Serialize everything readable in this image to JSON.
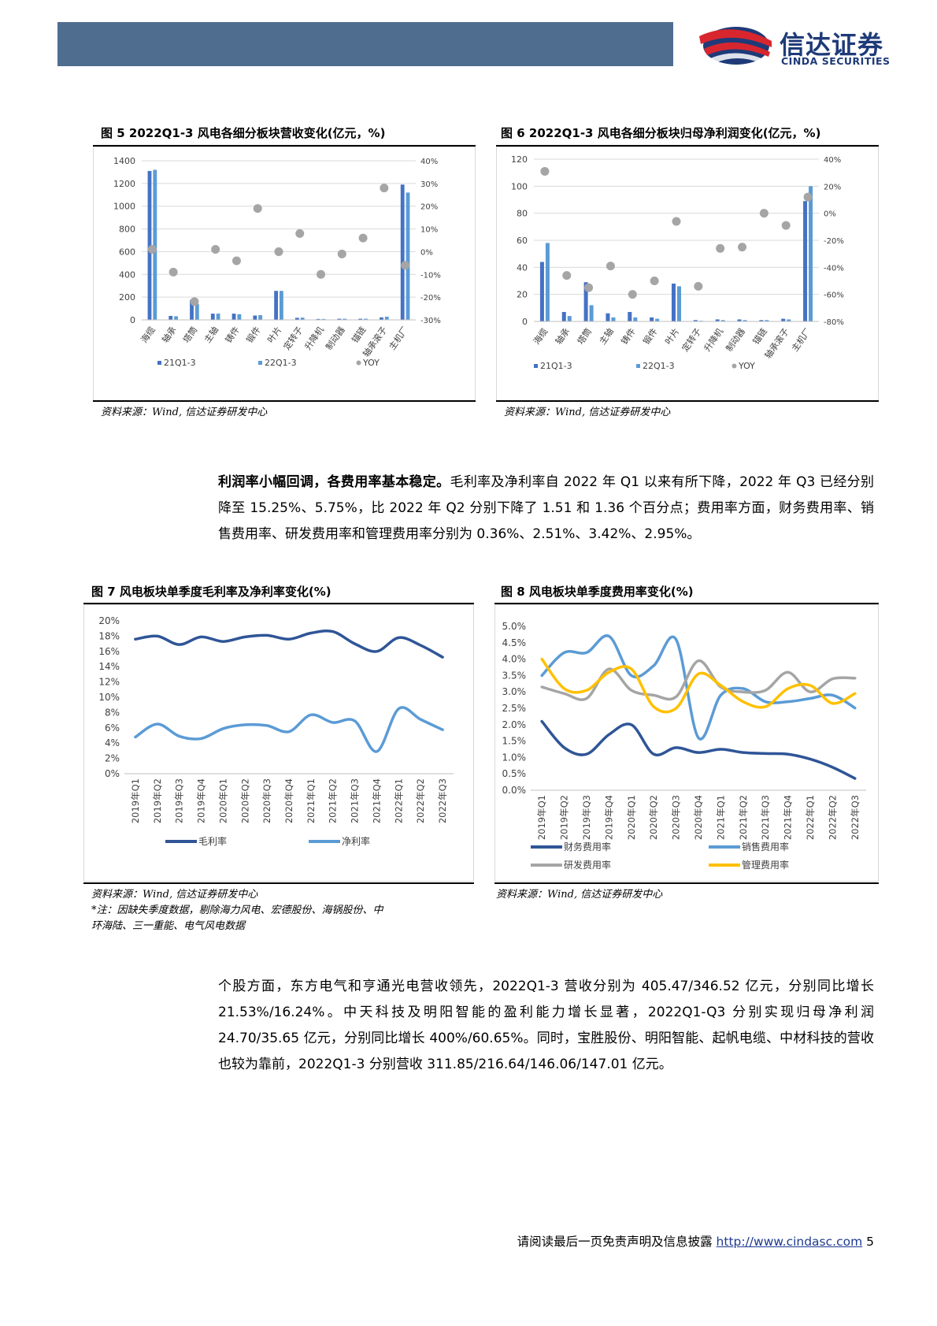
{
  "header": {
    "logo_cn": "信达证券",
    "logo_en": "CINDA SECURITIES"
  },
  "fig5": {
    "title": "图 5 2022Q1-3 风电各细分板块营收变化(亿元，%)",
    "source": "资料来源：Wind, 信达证券研发中心",
    "chart_data": {
      "type": "bar",
      "categories": [
        "海缆",
        "轴承",
        "塔筒",
        "主轴",
        "铸件",
        "锻件",
        "叶片",
        "定转子",
        "升降机",
        "制动器",
        "锚链",
        "轴承滚子",
        "主机厂"
      ],
      "series": [
        {
          "name": "21Q1-3",
          "values": [
            1310,
            35,
            175,
            55,
            55,
            38,
            255,
            18,
            8,
            10,
            10,
            22,
            1190
          ]
        },
        {
          "name": "22Q1-3",
          "values": [
            1320,
            32,
            140,
            55,
            50,
            42,
            255,
            20,
            8,
            10,
            10,
            28,
            1120
          ]
        },
        {
          "name": "YOY",
          "values": [
            1,
            -9,
            -22,
            1,
            -4,
            19,
            0,
            8,
            -10,
            -1,
            6,
            28,
            -6
          ]
        }
      ],
      "ylim_left": [
        0,
        1400
      ],
      "yticks_left": [
        "0",
        "200",
        "400",
        "600",
        "800",
        "1000",
        "1200",
        "1400"
      ],
      "ylim_right": [
        -30,
        40
      ],
      "yticks_right": [
        "-30%",
        "-20%",
        "-10%",
        "0%",
        "10%",
        "20%",
        "30%",
        "40%"
      ],
      "legend": [
        "21Q1-3",
        "22Q1-3",
        "YOY"
      ]
    }
  },
  "fig6": {
    "title": "图 6 2022Q1-3 风电各细分板块归母净利润变化(亿元，%)",
    "source": "资料来源：Wind, 信达证券研发中心",
    "chart_data": {
      "type": "bar",
      "categories": [
        "海缆",
        "轴承",
        "塔筒",
        "主轴",
        "铸件",
        "锻件",
        "叶片",
        "定转子",
        "升降机",
        "制动器",
        "锚链",
        "轴承滚子",
        "主机厂"
      ],
      "series": [
        {
          "name": "21Q1-3",
          "values": [
            44,
            7,
            29,
            6,
            7,
            3,
            28,
            1,
            1.5,
            1.5,
            1,
            2,
            89
          ]
        },
        {
          "name": "22Q1-3",
          "values": [
            58,
            4,
            12,
            3,
            3,
            2,
            26,
            0.5,
            1,
            1,
            1,
            1.5,
            100
          ]
        },
        {
          "name": "YOY",
          "values": [
            31,
            -46,
            -55,
            -39,
            -60,
            -50,
            -6,
            -54,
            -26,
            -25,
            0,
            -9,
            12
          ]
        }
      ],
      "ylim_left": [
        0,
        120
      ],
      "yticks_left": [
        "0",
        "20",
        "40",
        "60",
        "80",
        "100",
        "120"
      ],
      "ylim_right": [
        -80,
        40
      ],
      "yticks_right": [
        "-80%",
        "-60%",
        "-40%",
        "-20%",
        "0%",
        "20%",
        "40%"
      ],
      "legend": [
        "21Q1-3",
        "22Q1-3",
        "YOY"
      ]
    }
  },
  "para1": {
    "bold": "利润率小幅回调，各费用率基本稳定。",
    "text": "毛利率及净利率自 2022 年 Q1 以来有所下降，2022 年 Q3 已经分别降至 15.25%、5.75%，比 2022 年 Q2 分别下降了 1.51 和 1.36 个百分点；费用率方面，财务费用率、销售费用率、研发费用率和管理费用率分别为 0.36%、2.51%、3.42%、2.95%。"
  },
  "fig7": {
    "title": "图 7 风电板块单季度毛利率及净利率变化(%)",
    "source": "资料来源：Wind, 信达证券研发中心",
    "note_line1": "*注：因缺失季度数据，剔除海力风电、宏德股份、海锅股份、中",
    "note_line2": "环海陆、三一重能、电气风电数据",
    "chart_data": {
      "type": "line",
      "categories": [
        "2019年Q1",
        "2019年Q2",
        "2019年Q3",
        "2019年Q4",
        "2020年Q1",
        "2020年Q2",
        "2020年Q3",
        "2020年Q4",
        "2021年Q1",
        "2021年Q2",
        "2021年Q3",
        "2021年Q4",
        "2022年Q1",
        "2022年Q2",
        "2022年Q3"
      ],
      "series": [
        {
          "name": "毛利率",
          "values": [
            17.6,
            18.0,
            16.9,
            17.9,
            17.3,
            17.9,
            18.1,
            17.6,
            18.4,
            18.6,
            17.0,
            16.0,
            17.8,
            16.8,
            15.25
          ]
        },
        {
          "name": "净利率",
          "values": [
            4.8,
            6.5,
            4.9,
            4.6,
            5.9,
            6.4,
            6.3,
            5.5,
            7.7,
            6.7,
            6.9,
            2.9,
            8.5,
            7.1,
            5.75
          ]
        }
      ],
      "ylim": [
        0,
        20
      ],
      "yticks": [
        "0%",
        "2%",
        "4%",
        "6%",
        "8%",
        "10%",
        "12%",
        "14%",
        "16%",
        "18%",
        "20%"
      ],
      "legend": [
        "毛利率",
        "净利率"
      ]
    }
  },
  "fig8": {
    "title": "图 8 风电板块单季度费用率变化(%)",
    "source": "资料来源：Wind, 信达证券研发中心",
    "chart_data": {
      "type": "line",
      "categories": [
        "2019年Q1",
        "2019年Q2",
        "2019年Q3",
        "2019年Q4",
        "2020年Q1",
        "2020年Q2",
        "2020年Q3",
        "2020年Q4",
        "2021年Q1",
        "2021年Q2",
        "2021年Q3",
        "2021年Q4",
        "2022年Q1",
        "2022年Q2",
        "2022年Q3"
      ],
      "series": [
        {
          "name": "财务费用率",
          "color": "#2f5597",
          "values": [
            2.1,
            1.3,
            1.1,
            1.7,
            2.0,
            1.1,
            1.3,
            1.15,
            1.25,
            1.15,
            1.12,
            1.1,
            0.95,
            0.7,
            0.36
          ]
        },
        {
          "name": "销售费用率",
          "color": "#5b9bd5",
          "values": [
            3.5,
            4.2,
            4.2,
            4.7,
            3.5,
            3.8,
            4.6,
            1.6,
            2.9,
            3.1,
            2.7,
            2.7,
            2.8,
            2.9,
            2.51
          ]
        },
        {
          "name": "研发费用率",
          "color": "#a5a5a5",
          "values": [
            3.15,
            2.95,
            2.8,
            3.7,
            3.05,
            2.9,
            2.85,
            3.95,
            3.15,
            3.0,
            3.05,
            3.6,
            3.0,
            3.4,
            3.42
          ]
        },
        {
          "name": "管理费用率",
          "color": "#ffc000",
          "values": [
            4.0,
            3.1,
            3.05,
            3.6,
            3.7,
            2.55,
            2.5,
            3.55,
            3.2,
            2.7,
            2.55,
            3.1,
            3.2,
            2.65,
            2.95
          ]
        }
      ],
      "ylim": [
        0,
        5
      ],
      "yticks": [
        "0.0%",
        "0.5%",
        "1.0%",
        "1.5%",
        "2.0%",
        "2.5%",
        "3.0%",
        "3.5%",
        "4.0%",
        "4.5%",
        "5.0%"
      ],
      "legend": [
        "财务费用率",
        "销售费用率",
        "研发费用率",
        "管理费用率"
      ]
    }
  },
  "para2": {
    "text": "个股方面，东方电气和亨通光电营收领先，2022Q1-3 营收分别为 405.47/346.52 亿元，分别同比增长 21.53%/16.24%。中天科技及明阳智能的盈利能力增长显著，2022Q1-Q3 分别实现归母净利润 24.70/35.65 亿元，分别同比增长 400%/60.65%。同时，宝胜股份、明阳智能、起帆电缆、中材科技的营收也较为靠前，2022Q1-3 分别营收 311.85/216.64/146.06/147.01 亿元。"
  },
  "footer": {
    "text": "请阅读最后一页免责声明及信息披露",
    "link": "http://www.cindasc.com",
    "page": "5"
  },
  "colors": {
    "header_bar": "#4f6d8f",
    "bar_dark": "#4472c4",
    "bar_light": "#5b9bd5",
    "yoy": "#a5a5a5",
    "line_dark": "#2f5597",
    "line_light": "#5b9bd5"
  }
}
